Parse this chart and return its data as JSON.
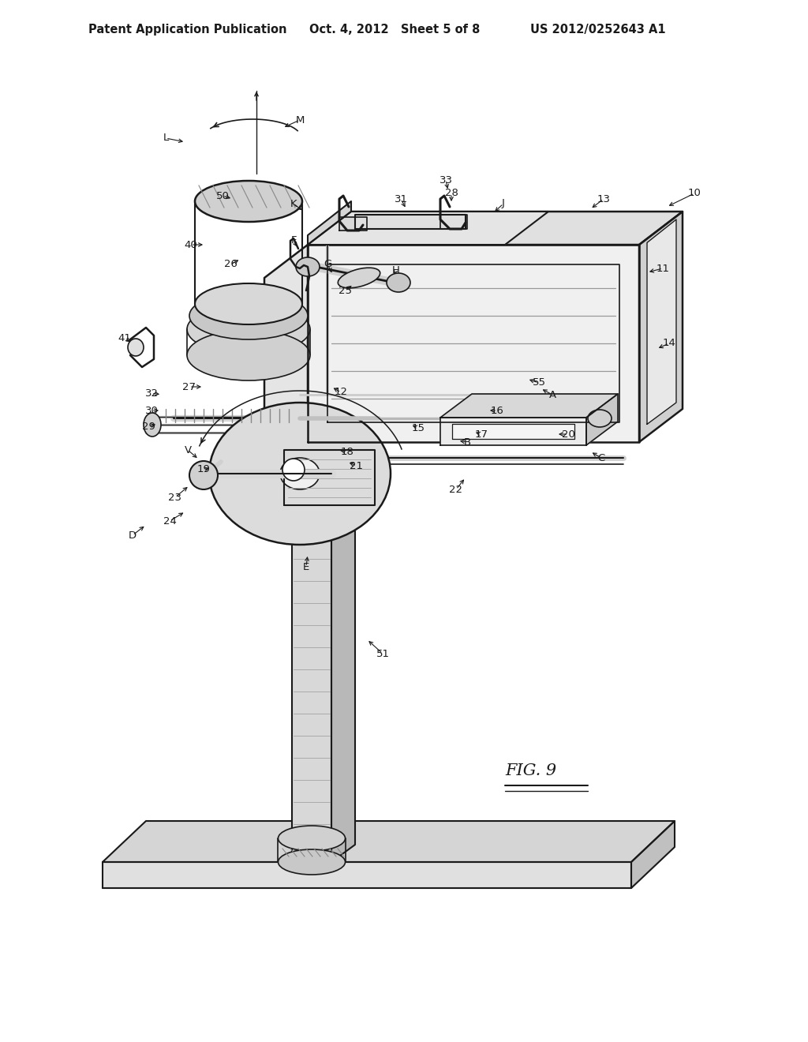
{
  "bg_color": "#ffffff",
  "header_left": "Patent Application Publication",
  "header_center": "Oct. 4, 2012   Sheet 5 of 8",
  "header_right": "US 2012/0252643 A1",
  "dark": "#1a1a1a",
  "gray_light": "#e8e8e8",
  "gray_mid": "#d0d0d0",
  "gray_dark": "#b8b8b8"
}
